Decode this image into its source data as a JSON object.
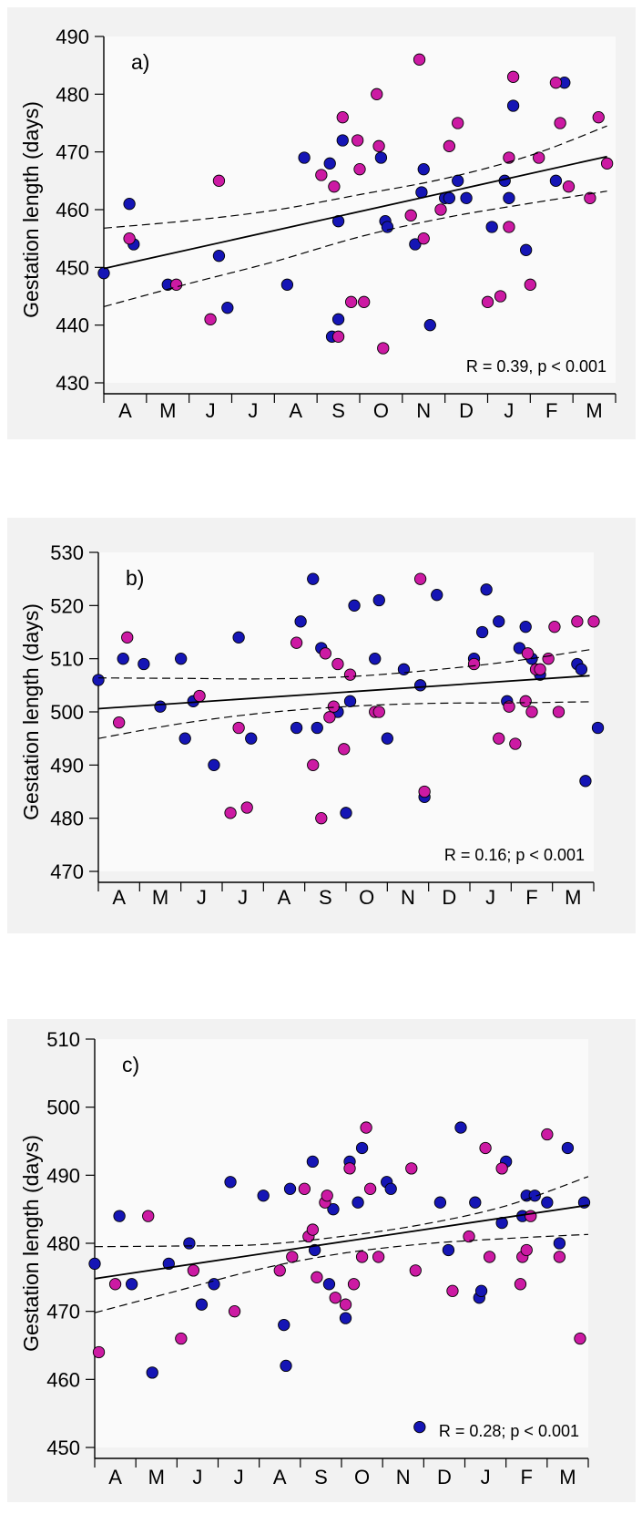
{
  "colors": {
    "blue": "#1515b5",
    "magenta": "#cc1aa3",
    "plot_bg": "#fafafa",
    "frame_bg": "#f2f2f2"
  },
  "chart_data": [
    {
      "type": "scatter",
      "panel_label": "a)",
      "ylabel": "Gestation length (days)",
      "annotation": "R = 0.39, p < 0.001",
      "ylim": [
        430,
        490
      ],
      "yticks": [
        430,
        440,
        450,
        460,
        470,
        480,
        490
      ],
      "xticks": [
        "A",
        "M",
        "J",
        "J",
        "A",
        "S",
        "O",
        "N",
        "D",
        "J",
        "F",
        "M"
      ],
      "xlim": [
        -0.5,
        11.5
      ],
      "fit": {
        "x": [
          -0.5,
          11.3
        ],
        "y": [
          449.8,
          469.2
        ]
      },
      "ci_upper": {
        "x": [
          -0.5,
          1.5,
          3.5,
          5.5,
          7.5,
          9.5,
          11.3
        ],
        "y": [
          456.8,
          458.1,
          459.9,
          462.6,
          465.4,
          469.4,
          474.5
        ]
      },
      "ci_lower": {
        "x": [
          -0.5,
          1.5,
          3.5,
          5.5,
          7.5,
          9.5,
          11.3
        ],
        "y": [
          443.2,
          447.2,
          451.0,
          455.3,
          458.6,
          461.1,
          463.2
        ]
      },
      "series": [
        {
          "color": "blue",
          "x": [
            -0.5,
            0.1,
            0.2,
            1.0,
            2.2,
            2.4,
            3.8,
            4.2,
            4.8,
            4.85,
            5.0,
            5.0,
            5.1,
            6.0,
            6.1,
            6.15,
            6.8,
            6.95,
            7.0,
            7.15,
            7.5,
            7.6,
            7.8,
            8.0,
            8.6,
            8.9,
            9.0,
            9.1,
            9.4,
            10.1,
            10.3
          ],
          "y": [
            449,
            461,
            454,
            447,
            452,
            443,
            447,
            469,
            468,
            438,
            441,
            458,
            472,
            469,
            458,
            457,
            454,
            463,
            467,
            440,
            462,
            462,
            465,
            462,
            457,
            465,
            462,
            478,
            453,
            465,
            482
          ]
        },
        {
          "color": "magenta",
          "x": [
            0.1,
            1.2,
            2.0,
            2.2,
            4.6,
            4.9,
            5.0,
            5.1,
            5.3,
            5.45,
            5.5,
            5.6,
            5.9,
            5.95,
            6.05,
            6.7,
            6.9,
            7.0,
            7.4,
            7.6,
            7.8,
            8.5,
            8.8,
            9.0,
            9.0,
            9.1,
            9.5,
            9.7,
            10.1,
            10.2,
            10.4,
            10.9,
            11.1,
            11.3
          ],
          "y": [
            455,
            447,
            441,
            465,
            466,
            464,
            438,
            476,
            444,
            472,
            467,
            444,
            480,
            471,
            436,
            459,
            486,
            455,
            460,
            471,
            475,
            444,
            445,
            457,
            469,
            483,
            447,
            469,
            482,
            475,
            464,
            462,
            476,
            468
          ]
        }
      ]
    },
    {
      "type": "scatter",
      "panel_label": "b)",
      "ylabel": "Gestation length (days)",
      "annotation": "R = 0.16; p < 0.001",
      "ylim": [
        470,
        530
      ],
      "yticks": [
        470,
        480,
        490,
        500,
        510,
        520,
        530
      ],
      "xticks": [
        "A",
        "M",
        "J",
        "J",
        "A",
        "S",
        "O",
        "N",
        "D",
        "J",
        "F",
        "M"
      ],
      "xlim": [
        -0.5,
        11.5
      ],
      "fit": {
        "x": [
          -0.5,
          11.4
        ],
        "y": [
          500.6,
          506.8
        ]
      },
      "ci_upper": {
        "x": [
          -0.5,
          1.5,
          3.5,
          5.5,
          7.5,
          9.5,
          11.4
        ],
        "y": [
          506.4,
          506.3,
          506.2,
          506.6,
          507.8,
          509.5,
          511.7
        ]
      },
      "ci_lower": {
        "x": [
          -0.5,
          1.5,
          3.5,
          5.5,
          7.5,
          9.5,
          11.4
        ],
        "y": [
          495.0,
          497.8,
          499.8,
          501.0,
          501.6,
          501.7,
          501.9
        ]
      },
      "series": [
        {
          "color": "blue",
          "x": [
            -0.5,
            0.1,
            0.6,
            1.0,
            1.5,
            1.6,
            1.8,
            2.3,
            2.9,
            3.2,
            4.3,
            4.4,
            4.7,
            4.8,
            4.9,
            5.3,
            5.5,
            5.6,
            5.7,
            6.2,
            6.3,
            6.5,
            6.9,
            7.3,
            7.4,
            7.7,
            8.6,
            8.8,
            8.9,
            9.2,
            9.4,
            9.7,
            9.85,
            10.0,
            10.2,
            11.1,
            11.2,
            11.3,
            11.6
          ],
          "y": [
            506,
            510,
            509,
            501,
            510,
            495,
            502,
            490,
            514,
            495,
            497,
            517,
            525,
            497,
            512,
            500,
            481,
            502,
            520,
            510,
            521,
            495,
            508,
            505,
            484,
            522,
            510,
            515,
            523,
            517,
            502,
            512,
            516,
            510,
            507,
            509,
            508,
            487,
            497
          ]
        },
        {
          "color": "magenta",
          "x": [
            0.0,
            0.2,
            1.95,
            2.7,
            2.9,
            3.1,
            4.3,
            4.7,
            4.9,
            5.0,
            5.1,
            5.2,
            5.3,
            5.45,
            5.6,
            6.2,
            6.3,
            7.3,
            7.4,
            8.6,
            9.2,
            9.45,
            9.6,
            9.85,
            9.9,
            10.0,
            10.1,
            10.2,
            10.4,
            10.55,
            10.65,
            11.1,
            11.5
          ],
          "y": [
            498,
            514,
            503,
            481,
            497,
            482,
            513,
            490,
            480,
            511,
            499,
            501,
            509,
            493,
            507,
            500,
            500,
            525,
            485,
            509,
            495,
            501,
            494,
            502,
            511,
            500,
            508,
            508,
            510,
            516,
            500,
            517,
            517
          ]
        }
      ]
    },
    {
      "type": "scatter",
      "panel_label": "c)",
      "ylabel": "Gestation length (days)",
      "annotation": "R = 0.28; p < 0.001",
      "ylim": [
        450,
        510
      ],
      "yticks": [
        450,
        460,
        470,
        480,
        490,
        500,
        510
      ],
      "xticks": [
        "A",
        "M",
        "J",
        "J",
        "A",
        "S",
        "O",
        "N",
        "D",
        "J",
        "F",
        "M"
      ],
      "xlim": [
        -0.5,
        11.5
      ],
      "fit": {
        "x": [
          -0.5,
          11.5
        ],
        "y": [
          474.8,
          485.6
        ]
      },
      "ci_upper": {
        "x": [
          -0.5,
          1.5,
          3.5,
          5.5,
          7.5,
          9.5,
          11.5
        ],
        "y": [
          479.5,
          479.6,
          479.8,
          481.0,
          482.8,
          485.5,
          489.8
        ]
      },
      "ci_lower": {
        "x": [
          -0.5,
          1.5,
          3.5,
          5.5,
          7.5,
          9.5,
          11.5
        ],
        "y": [
          469.8,
          473.0,
          476.2,
          478.5,
          479.9,
          480.7,
          481.3
        ]
      },
      "series": [
        {
          "color": "blue",
          "x": [
            -0.5,
            0.1,
            0.4,
            0.9,
            1.3,
            1.8,
            2.1,
            2.4,
            2.8,
            3.6,
            4.1,
            4.15,
            4.25,
            4.8,
            4.85,
            5.2,
            5.3,
            5.6,
            5.7,
            5.9,
            6.0,
            6.6,
            6.7,
            7.4,
            7.9,
            8.1,
            8.4,
            8.75,
            8.85,
            8.9,
            9.4,
            9.5,
            9.9,
            10.0,
            10.2,
            10.5,
            10.8,
            11.0,
            11.4
          ],
          "y": [
            477,
            484,
            474,
            461,
            477,
            480,
            471,
            474,
            489,
            487,
            468,
            462,
            488,
            492,
            479,
            474,
            485,
            469,
            492,
            486,
            494,
            489,
            488,
            453,
            486,
            479,
            497,
            486,
            472,
            473,
            483,
            492,
            484,
            487,
            487,
            486,
            480,
            494,
            486
          ]
        },
        {
          "color": "magenta",
          "x": [
            -0.4,
            0.0,
            0.8,
            1.6,
            1.9,
            2.9,
            4.0,
            4.3,
            4.6,
            4.7,
            4.8,
            4.9,
            5.1,
            5.15,
            5.35,
            5.6,
            5.7,
            5.8,
            6.0,
            6.1,
            6.2,
            6.4,
            7.2,
            7.3,
            8.2,
            8.6,
            9.0,
            9.1,
            9.4,
            9.85,
            9.9,
            10.0,
            10.1,
            10.5,
            10.8,
            11.3
          ],
          "y": [
            464,
            474,
            484,
            466,
            476,
            470,
            476,
            478,
            488,
            481,
            482,
            475,
            486,
            487,
            472,
            471,
            491,
            474,
            478,
            497,
            488,
            478,
            491,
            476,
            473,
            481,
            494,
            478,
            491,
            474,
            478,
            479,
            484,
            496,
            478,
            466
          ]
        }
      ]
    }
  ]
}
